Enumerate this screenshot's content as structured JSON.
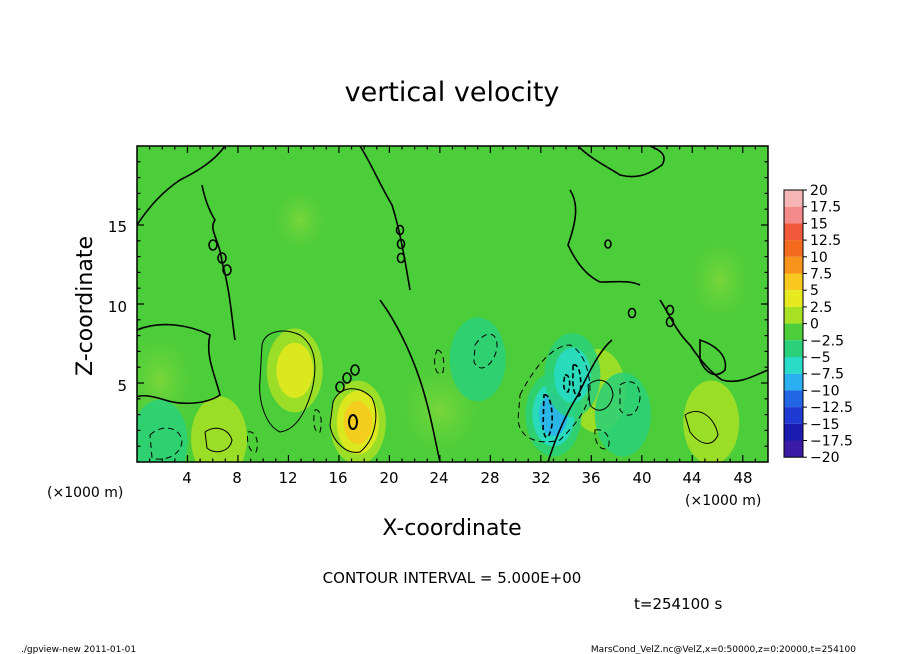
{
  "chart_data": {
    "type": "heatmap",
    "title": "vertical velocity",
    "xlabel": "X-coordinate",
    "ylabel": "Z-coordinate",
    "x_unit": "(×1000 m)",
    "y_unit": "(×1000 m)",
    "xlim": [
      0,
      50
    ],
    "ylim": [
      0,
      20
    ],
    "x_ticks": [
      4,
      8,
      12,
      16,
      20,
      24,
      28,
      32,
      36,
      40,
      44,
      48
    ],
    "y_ticks": [
      5,
      10,
      15
    ],
    "colorbar_levels": [
      "20",
      "17.5",
      "15",
      "12.5",
      "10",
      "7.5",
      "5",
      "2.5",
      "0",
      "−2.5",
      "−5",
      "−7.5",
      "−10",
      "−12.5",
      "−15",
      "−17.5",
      "−20"
    ],
    "colorbar_colors": [
      "#f7b6b6",
      "#f58a8a",
      "#f25a3c",
      "#f46a1e",
      "#f7941c",
      "#f8c81e",
      "#e6ea1e",
      "#a8e024",
      "#4ccd3a",
      "#2ad07a",
      "#28dcc8",
      "#2ab0f0",
      "#2266e6",
      "#1e3ad2",
      "#1a1ab0",
      "#3b1aa6",
      "#6a16a6"
    ],
    "contour_interval": "CONTOUR INTERVAL = 5.000E+00",
    "time_label": "t=254100 s",
    "features": [
      {
        "x": 12.5,
        "z": 5.8,
        "w": 5.5,
        "label": "updraft"
      },
      {
        "x": 17.5,
        "z": 2.5,
        "w": 7.5,
        "label": "updraft"
      },
      {
        "x": 6.5,
        "z": 1.5,
        "w": 3.5,
        "label": "updraft"
      },
      {
        "x": 36.5,
        "z": 4.5,
        "w": 3.5,
        "label": "updraft"
      },
      {
        "x": 45.5,
        "z": 2.5,
        "w": 3.0,
        "label": "updraft"
      },
      {
        "x": 33.0,
        "z": 3.0,
        "w": -7.5,
        "label": "downdraft"
      },
      {
        "x": 34.5,
        "z": 5.5,
        "w": -6.0,
        "label": "downdraft"
      },
      {
        "x": 27.0,
        "z": 6.5,
        "w": -3.5,
        "label": "downdraft"
      },
      {
        "x": 38.5,
        "z": 3.0,
        "w": -3.0,
        "label": "downdraft"
      },
      {
        "x": 1.8,
        "z": 1.3,
        "w": -3.5,
        "label": "downdraft"
      }
    ]
  },
  "footer": {
    "left": "./gpview-new   2011-01-01",
    "right": "MarsCond_VelZ.nc@VelZ,x=0:50000,z=0:20000,t=254100"
  }
}
